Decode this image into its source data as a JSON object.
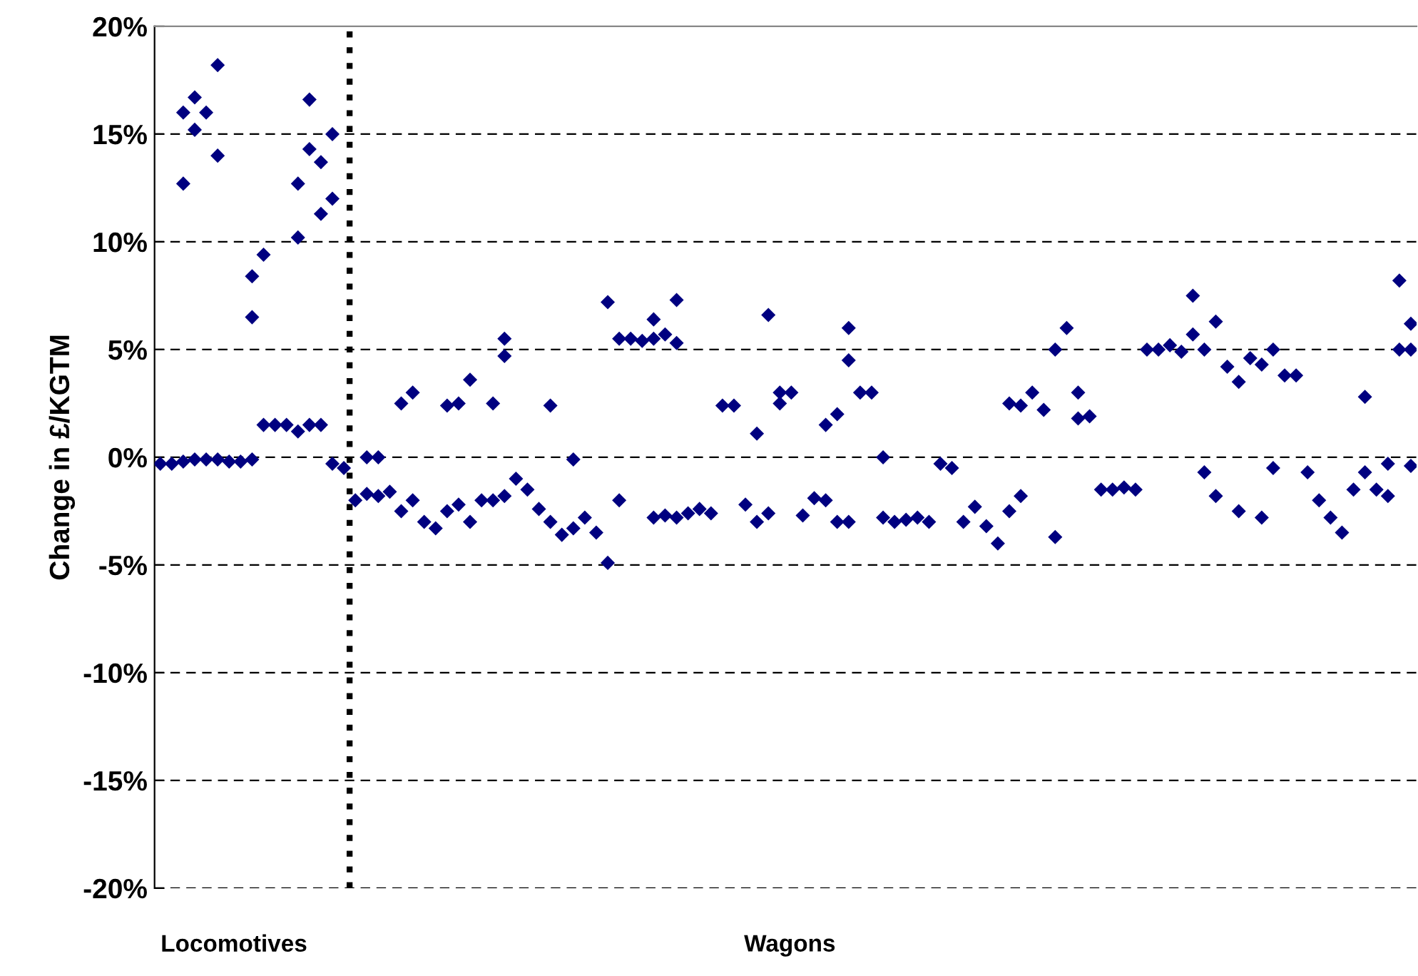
{
  "chart_data": {
    "type": "scatter",
    "ylabel": "Change in £/KGTM",
    "categories": [
      null,
      null,
      null,
      null,
      null,
      null,
      null,
      null,
      null,
      null,
      null,
      null,
      null,
      null,
      null,
      null,
      null,
      null,
      null,
      null,
      null,
      null,
      null,
      null,
      null,
      null,
      null,
      null,
      null,
      null,
      null,
      null,
      null,
      null,
      null,
      null,
      null,
      null,
      null,
      null,
      null,
      null,
      null,
      null,
      null,
      null,
      null,
      null,
      null,
      null,
      null,
      null,
      null,
      null,
      null,
      null,
      null,
      null,
      null,
      null,
      null,
      null,
      null,
      null,
      null,
      null,
      null,
      null,
      null,
      null,
      null,
      null,
      null,
      null,
      null,
      null,
      null,
      null,
      null,
      null,
      null,
      null,
      null,
      null,
      null,
      null,
      null,
      null,
      null,
      null,
      null,
      null,
      null,
      null,
      null,
      null,
      null,
      null,
      null,
      null,
      null,
      null,
      null,
      null,
      null,
      null,
      null,
      null,
      null,
      null
    ],
    "series": [
      {
        "color": "#000080",
        "values": [
          -0.3,
          -0.3,
          -0.2,
          -0.1,
          -0.1,
          -0.1,
          -0.2,
          -0.2,
          -0.1,
          1.5,
          1.5,
          1.5,
          1.2,
          1.5,
          1.5,
          -0.3,
          -0.5,
          -2.0,
          -1.7,
          -1.8,
          -1.6,
          -2.5,
          -2.0,
          -3.0,
          -3.3,
          -2.5,
          -2.2,
          -3.0,
          -2.0,
          -2.0,
          -1.8,
          -1.0,
          -1.5,
          -2.4,
          -3.0,
          -3.6,
          -3.3,
          -2.8,
          -3.5,
          -4.9,
          -2.0,
          5.5,
          5.4,
          -2.8,
          -2.7,
          -2.8,
          -2.6,
          -2.4,
          -2.6,
          2.4,
          2.4,
          -2.2,
          -3.0,
          -2.6,
          2.5,
          3.0,
          -2.7,
          -1.9,
          -2.0,
          -3.0,
          -3.0,
          3.0,
          3.0,
          -2.8,
          -3.0,
          -2.9,
          -2.8,
          -3.0,
          -0.3,
          -0.5,
          -3.0,
          -2.3,
          -3.2,
          -4.0,
          -2.5,
          -1.8,
          3.0,
          2.2,
          5.0,
          6.0,
          3.0,
          1.9,
          -1.5,
          -1.5,
          -1.4,
          -1.5,
          5.0,
          5.0,
          5.2,
          4.9,
          5.7,
          -0.7,
          -1.8,
          4.2,
          3.5,
          4.6,
          -2.8,
          -0.5,
          3.8,
          3.8,
          -0.7,
          -2.0,
          -2.8,
          -3.5,
          -1.5,
          -0.7,
          -1.5,
          -1.8,
          5.0,
          5.0
        ]
      },
      {
        "color": "#000080",
        "values": [
          null,
          null,
          16.0,
          16.7,
          16.0,
          18.2,
          null,
          null,
          8.4,
          9.4,
          null,
          null,
          12.7,
          16.6,
          13.7,
          15.0,
          null,
          null,
          0,
          0,
          null,
          2.5,
          3.0,
          null,
          null,
          2.4,
          2.5,
          3.6,
          null,
          2.5,
          5.5,
          null,
          null,
          null,
          2.4,
          null,
          -0.1,
          null,
          null,
          7.2,
          5.5,
          null,
          null,
          5.5,
          5.7,
          5.3,
          null,
          null,
          null,
          null,
          null,
          null,
          1.1,
          6.6,
          3.0,
          null,
          null,
          null,
          1.5,
          2.0,
          4.5,
          null,
          null,
          0,
          null,
          null,
          null,
          null,
          null,
          null,
          null,
          null,
          null,
          null,
          2.5,
          2.4,
          null,
          null,
          -3.7,
          null,
          1.8,
          null,
          null,
          null,
          null,
          null,
          null,
          null,
          null,
          null,
          7.5,
          5.0,
          6.3,
          null,
          -2.5,
          null,
          4.3,
          5.0,
          null,
          null,
          null,
          null,
          null,
          null,
          null,
          2.8,
          null,
          -0.3,
          8.2,
          6.2
        ]
      },
      {
        "color": "#000080",
        "values": [
          null,
          null,
          12.7,
          15.2,
          null,
          14.0,
          null,
          null,
          6.5,
          null,
          null,
          null,
          10.2,
          14.3,
          11.3,
          12.0,
          null,
          null,
          null,
          null,
          null,
          null,
          null,
          null,
          null,
          null,
          null,
          null,
          null,
          null,
          4.7,
          null,
          null,
          null,
          null,
          null,
          null,
          null,
          null,
          null,
          null,
          null,
          null,
          6.4,
          null,
          7.3,
          null,
          null,
          null,
          null,
          null,
          null,
          null,
          null,
          null,
          null,
          null,
          null,
          null,
          null,
          6.0,
          null,
          null,
          null,
          null,
          null,
          null,
          null,
          null,
          null,
          null,
          null,
          null,
          null,
          null,
          null,
          null,
          null,
          null,
          null,
          null,
          null,
          null,
          null,
          null,
          null,
          null,
          null,
          null,
          null,
          null,
          null,
          null,
          null,
          null,
          null,
          null,
          null,
          null,
          null,
          null,
          null,
          null,
          null,
          null,
          null,
          null,
          null,
          null,
          -0.4
        ]
      }
    ],
    "ylim": [
      -20,
      20
    ],
    "yticks": [
      {
        "value": -20,
        "label": "-20%"
      },
      {
        "value": -15,
        "label": "-15%"
      },
      {
        "value": -10,
        "label": "-10%"
      },
      {
        "value": -5,
        "label": "-5%"
      },
      {
        "value": 0,
        "label": "0%"
      },
      {
        "value": 5,
        "label": "5%"
      },
      {
        "value": 10,
        "label": "10%"
      },
      {
        "value": 15,
        "label": "15%"
      },
      {
        "value": 20,
        "label": "20%"
      }
    ],
    "annotations": [
      "Locomotives",
      "Wagons"
    ],
    "grid": "y",
    "marker": "diamond",
    "tick_labels": "y"
  }
}
